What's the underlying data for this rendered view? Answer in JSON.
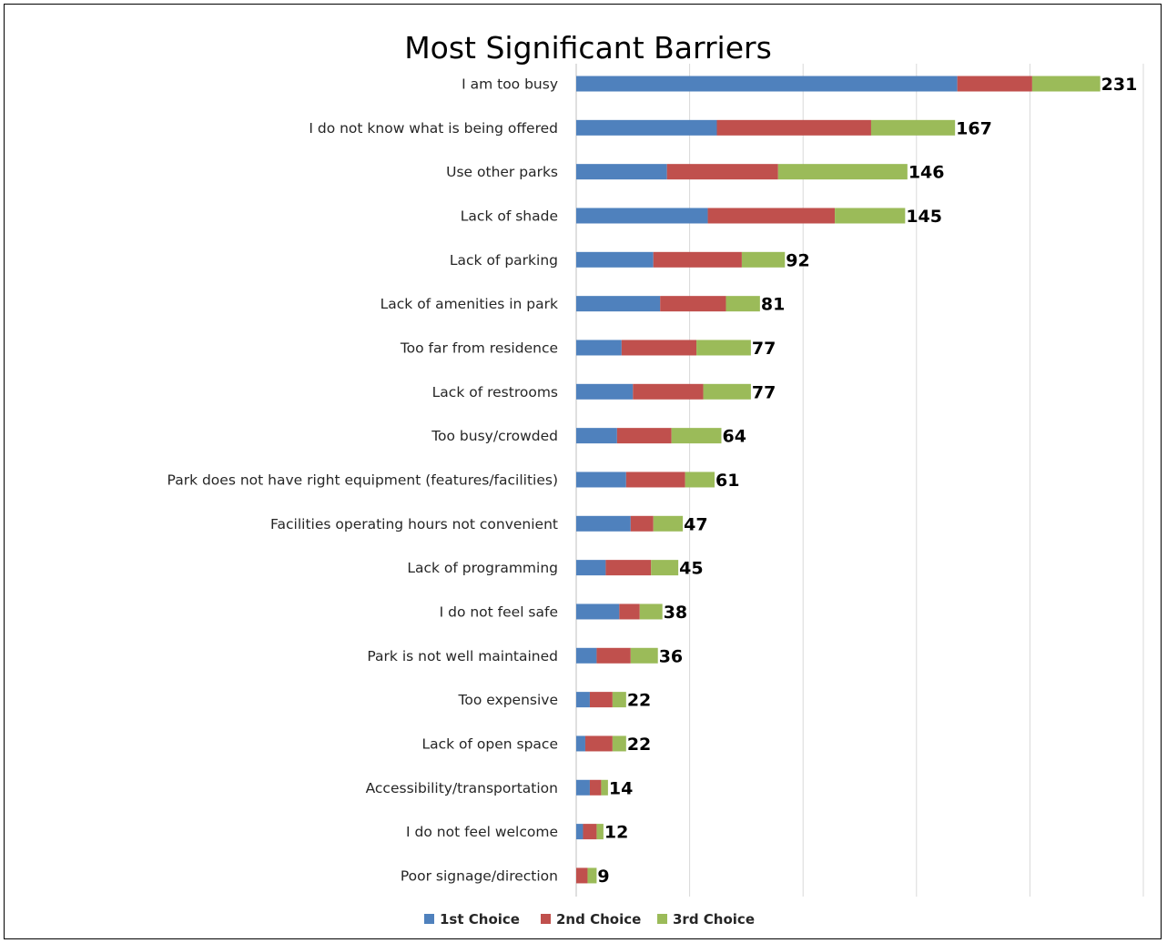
{
  "chart_data": {
    "type": "bar",
    "orientation": "horizontal",
    "stacked": true,
    "title": "Most Significant Barriers",
    "categories": [
      "I am too busy",
      "I do not know what is being offered",
      "Use other parks",
      "Lack of shade",
      "Lack of parking",
      "Lack of amenities in park",
      "Too far from residence",
      "Lack of restrooms",
      "Too busy/crowded",
      "Park does not have right equipment (features/facilities)",
      "Facilities operating hours not convenient",
      "Lack of programming",
      "I do not feel safe",
      "Park is not well maintained",
      "Too expensive",
      "Lack of open space",
      "Accessibility/transportation",
      "I do not feel welcome",
      "Poor signage/direction"
    ],
    "series": [
      {
        "name": "1st Choice",
        "color": "#4f81bd",
        "values": [
          168,
          62,
          40,
          58,
          34,
          37,
          20,
          25,
          18,
          22,
          24,
          13,
          19,
          9,
          6,
          4,
          6,
          3,
          0
        ]
      },
      {
        "name": "2nd Choice",
        "color": "#c0504d",
        "values": [
          33,
          68,
          49,
          56,
          39,
          29,
          33,
          31,
          24,
          26,
          10,
          20,
          9,
          15,
          10,
          12,
          5,
          6,
          5
        ]
      },
      {
        "name": "3rd Choice",
        "color": "#9bbb59",
        "values": [
          30,
          37,
          57,
          31,
          19,
          15,
          24,
          21,
          22,
          13,
          13,
          12,
          10,
          12,
          6,
          6,
          3,
          3,
          4
        ]
      }
    ],
    "totals": [
      "231",
      "167",
      "146",
      "145",
      "92",
      "81",
      "77",
      "77",
      "64",
      "61",
      "47",
      "45",
      "38",
      "36",
      "22",
      "22",
      "14",
      "12",
      "9"
    ],
    "xlim": [
      0,
      250
    ],
    "x_gridlines": [
      0,
      50,
      100,
      150,
      200,
      250
    ],
    "grid": true,
    "legend": "bottom"
  }
}
